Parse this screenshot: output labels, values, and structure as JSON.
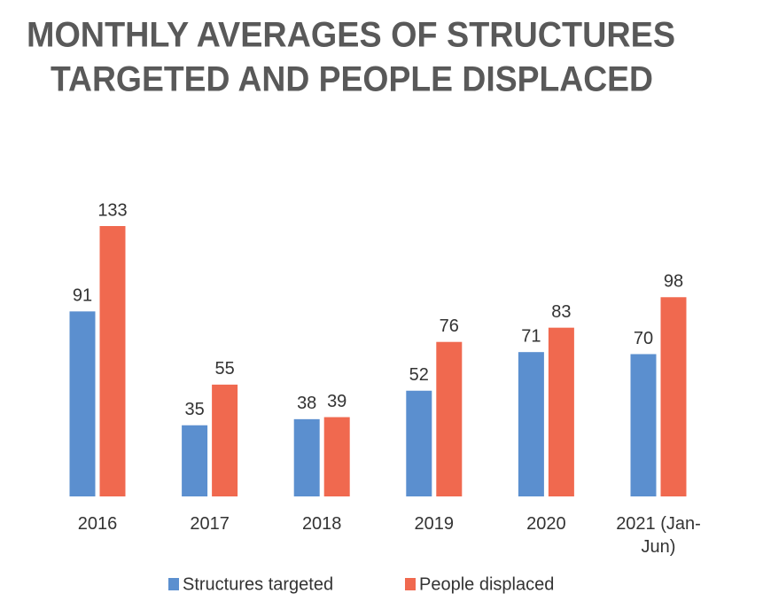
{
  "chart_data": {
    "type": "bar",
    "title": [
      "MONTHLY AVERAGES OF STRUCTURES",
      "TARGETED AND PEOPLE DISPLACED"
    ],
    "categories": [
      "2016",
      "2017",
      "2018",
      "2019",
      "2020",
      "2021 (Jan-Jun)"
    ],
    "series": [
      {
        "name": "Structures targeted",
        "color": "#5b8fcf",
        "values": [
          91,
          35,
          38,
          52,
          71,
          70
        ]
      },
      {
        "name": "People displaced",
        "color": "#f0694f",
        "values": [
          133,
          55,
          39,
          76,
          83,
          98
        ]
      }
    ]
  }
}
